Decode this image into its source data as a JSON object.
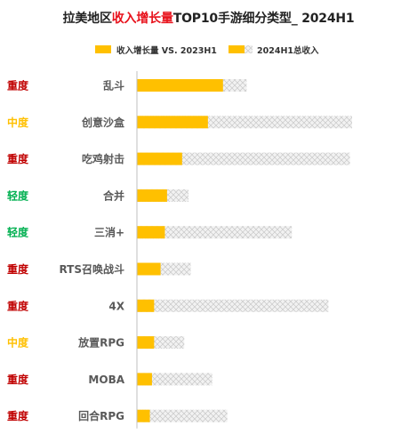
{
  "title": {
    "part1": "拉美地区",
    "highlight": "收入增长量",
    "part2": "TOP10手游细分类型_ 2024H1"
  },
  "colors": {
    "growth": "#FFC000",
    "total_fill": "#F2F2F2",
    "total_pattern": "#BFBFBF",
    "heavy": "#C00000",
    "medium": "#FFC000",
    "light": "#00B050",
    "category_text": "#595959"
  },
  "chart_data": {
    "type": "bar",
    "orientation": "horizontal",
    "title": "拉美地区收入增长量TOP10手游细分类型_ 2024H1",
    "legend": {
      "placement": "top"
    },
    "categories": [
      "乱斗",
      "创意沙盒",
      "吃鸡射击",
      "合并",
      "三消+",
      "RTS召唤战斗",
      "4X",
      "放置RPG",
      "MOBA",
      "回合RPG"
    ],
    "intensity": [
      "重度",
      "中度",
      "重度",
      "轻度",
      "轻度",
      "重度",
      "重度",
      "中度",
      "重度",
      "重度"
    ],
    "series": [
      {
        "name": "收入增长量 VS. 2023H1",
        "values": [
          40,
          33,
          21,
          14,
          13,
          11,
          8,
          8,
          7,
          6
        ]
      },
      {
        "name": "2024H1总收入",
        "values": [
          51,
          100,
          99,
          24,
          72,
          25,
          89,
          22,
          35,
          42
        ]
      }
    ],
    "xlim": [
      0,
      100
    ],
    "grid": false,
    "axis_labels_shown": false
  }
}
